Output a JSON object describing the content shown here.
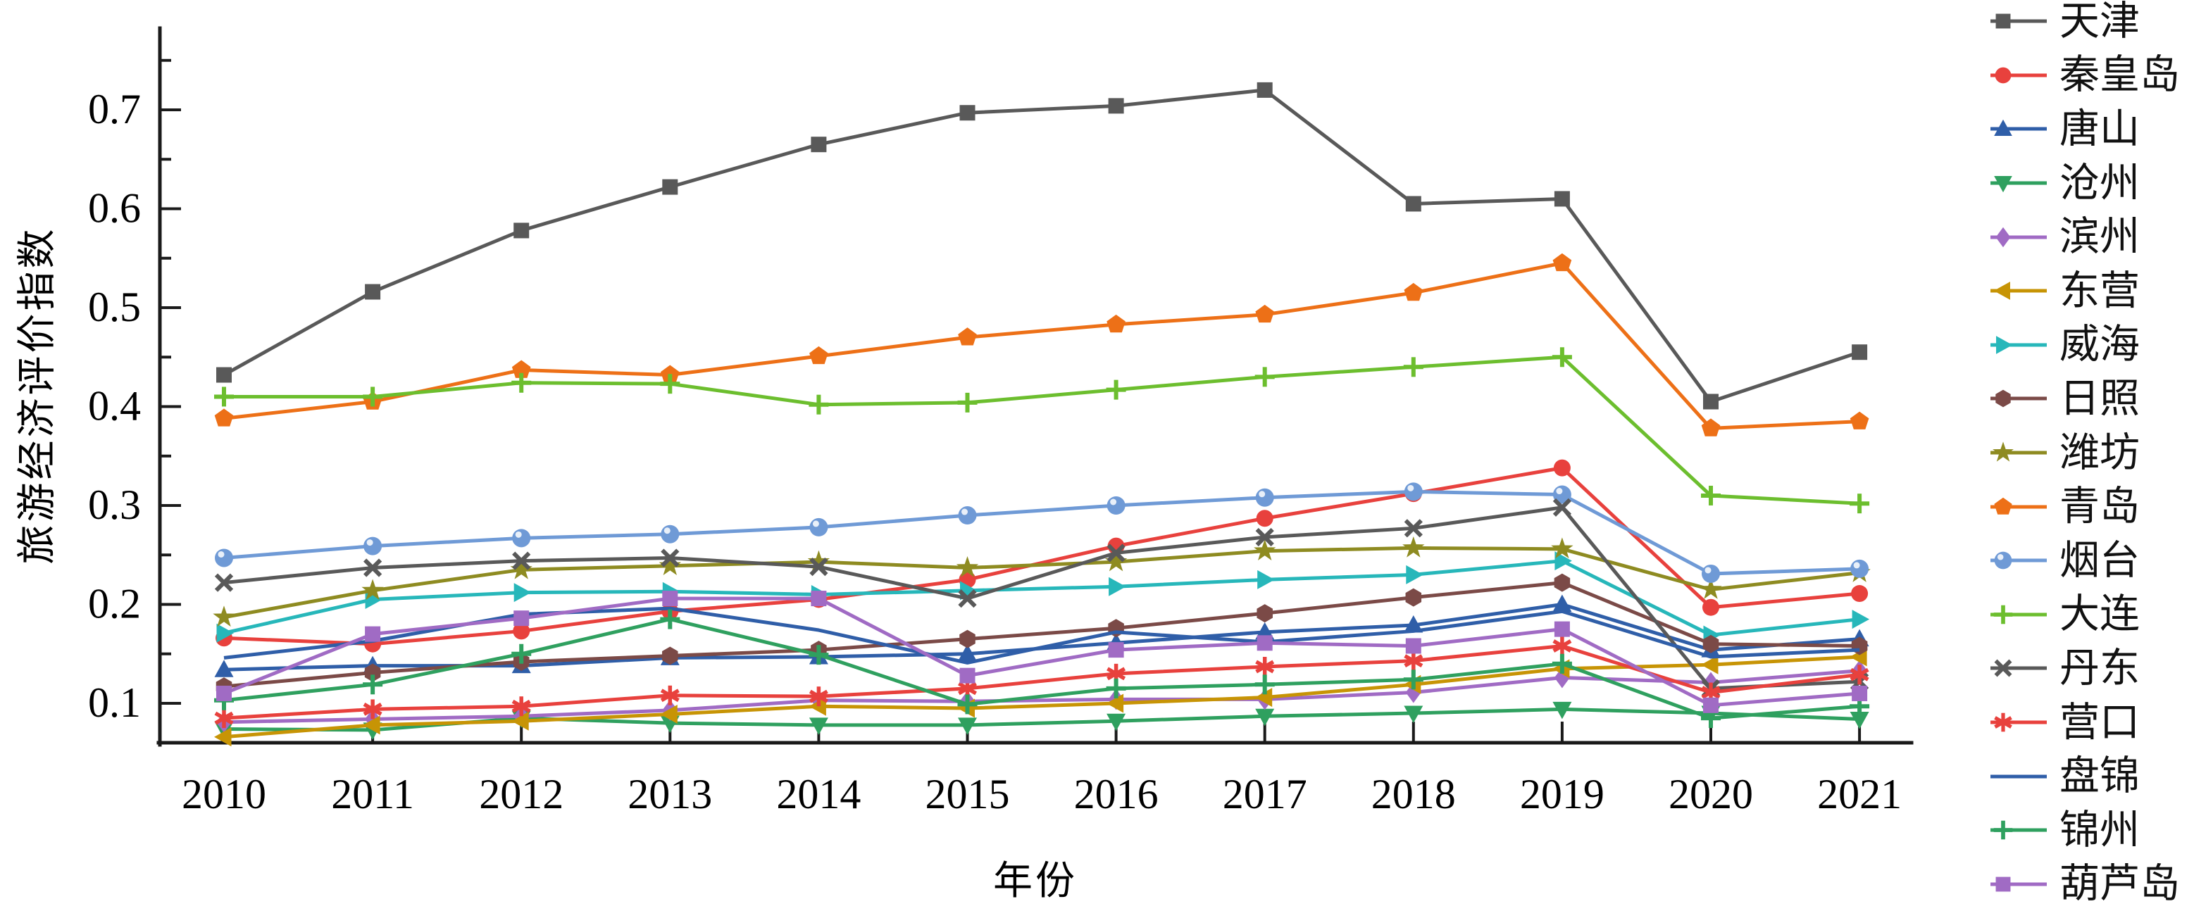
{
  "chart_data": {
    "type": "line",
    "title": "",
    "xlabel": "年份",
    "ylabel": "旅游经济评价指数",
    "x": [
      2010,
      2011,
      2012,
      2013,
      2014,
      2015,
      2016,
      2017,
      2018,
      2019,
      2020,
      2021
    ],
    "x_tick_labels": [
      "2010",
      "2011",
      "2012",
      "2013",
      "2014",
      "2015",
      "2016",
      "2017",
      "2018",
      "2019",
      "2020",
      "2021"
    ],
    "ylim": [
      0.05,
      0.782
    ],
    "yticks": [
      0.1,
      0.2,
      0.3,
      0.4,
      0.5,
      0.6,
      0.7
    ],
    "ytick_labels": [
      "0.1",
      "0.2",
      "0.3",
      "0.4",
      "0.5",
      "0.6",
      "0.7"
    ],
    "minor_yticks": [
      0.15,
      0.25,
      0.35,
      0.45,
      0.55,
      0.65,
      0.75
    ],
    "grid": false,
    "legend_position": "right-outside",
    "axis_color": "#1a1a1a",
    "series": [
      {
        "name": "天津",
        "color": "#595959",
        "marker": "square",
        "values": [
          0.432,
          0.516,
          0.578,
          0.622,
          0.665,
          0.697,
          0.704,
          0.72,
          0.605,
          0.61,
          0.405,
          0.455
        ]
      },
      {
        "name": "秦皇岛",
        "color": "#E8413D",
        "marker": "circle",
        "values": [
          0.166,
          0.16,
          0.173,
          0.193,
          0.205,
          0.225,
          0.259,
          0.287,
          0.312,
          0.338,
          0.197,
          0.211
        ]
      },
      {
        "name": "唐山",
        "color": "#2F5EA8",
        "marker": "triangle-up",
        "values": [
          0.134,
          0.138,
          0.138,
          0.146,
          0.147,
          0.15,
          0.161,
          0.172,
          0.179,
          0.2,
          0.154,
          0.165
        ]
      },
      {
        "name": "沧州",
        "color": "#2FA05F",
        "marker": "triangle-down",
        "values": [
          0.074,
          0.073,
          0.085,
          0.08,
          0.078,
          0.078,
          0.082,
          0.087,
          0.09,
          0.094,
          0.09,
          0.084
        ]
      },
      {
        "name": "滨州",
        "color": "#A06BC4",
        "marker": "diamond",
        "values": [
          0.081,
          0.084,
          0.087,
          0.093,
          0.103,
          0.102,
          0.104,
          0.104,
          0.111,
          0.126,
          0.121,
          0.133
        ]
      },
      {
        "name": "东营",
        "color": "#C79405",
        "marker": "triangle-left",
        "values": [
          0.066,
          0.078,
          0.082,
          0.089,
          0.097,
          0.095,
          0.1,
          0.106,
          0.119,
          0.135,
          0.139,
          0.147
        ]
      },
      {
        "name": "威海",
        "color": "#27B7BA",
        "marker": "triangle-right",
        "values": [
          0.171,
          0.205,
          0.212,
          0.213,
          0.21,
          0.214,
          0.218,
          0.225,
          0.23,
          0.244,
          0.169,
          0.185
        ]
      },
      {
        "name": "日照",
        "color": "#7B4A47",
        "marker": "hexagon",
        "values": [
          0.117,
          0.131,
          0.142,
          0.148,
          0.154,
          0.165,
          0.176,
          0.191,
          0.207,
          0.222,
          0.16,
          0.158
        ]
      },
      {
        "name": "潍坊",
        "color": "#8E8B21",
        "marker": "star",
        "values": [
          0.187,
          0.214,
          0.235,
          0.239,
          0.243,
          0.237,
          0.243,
          0.254,
          0.257,
          0.256,
          0.215,
          0.232
        ]
      },
      {
        "name": "青岛",
        "color": "#ED7017",
        "marker": "pentagon",
        "values": [
          0.388,
          0.405,
          0.437,
          0.432,
          0.451,
          0.47,
          0.483,
          0.493,
          0.515,
          0.545,
          0.378,
          0.385
        ]
      },
      {
        "name": "烟台",
        "color": "#6F9AD6",
        "marker": "sphere",
        "values": [
          0.247,
          0.259,
          0.267,
          0.271,
          0.278,
          0.29,
          0.3,
          0.308,
          0.314,
          0.311,
          0.231,
          0.236
        ]
      },
      {
        "name": "大连",
        "color": "#6CBE2E",
        "marker": "plus",
        "values": [
          0.41,
          0.41,
          0.424,
          0.423,
          0.402,
          0.404,
          0.417,
          0.43,
          0.44,
          0.45,
          0.31,
          0.302
        ]
      },
      {
        "name": "丹东",
        "color": "#595959",
        "marker": "x",
        "values": [
          0.222,
          0.237,
          0.244,
          0.247,
          0.238,
          0.206,
          0.252,
          0.268,
          0.277,
          0.298,
          0.115,
          0.122
        ]
      },
      {
        "name": "营口",
        "color": "#E8413D",
        "marker": "asterisk",
        "values": [
          0.085,
          0.094,
          0.097,
          0.108,
          0.107,
          0.115,
          0.13,
          0.137,
          0.143,
          0.158,
          0.111,
          0.129
        ]
      },
      {
        "name": "盘锦",
        "color": "#2F5EA8",
        "marker": "none",
        "values": [
          0.146,
          0.163,
          0.19,
          0.196,
          0.174,
          0.141,
          0.172,
          0.162,
          0.173,
          0.193,
          0.147,
          0.154
        ]
      },
      {
        "name": "锦州",
        "color": "#2FA05F",
        "marker": "plus",
        "values": [
          0.103,
          0.119,
          0.15,
          0.185,
          0.149,
          0.099,
          0.115,
          0.119,
          0.124,
          0.14,
          0.085,
          0.097
        ]
      },
      {
        "name": "葫芦岛",
        "color": "#A06BC4",
        "marker": "square",
        "values": [
          0.11,
          0.17,
          0.186,
          0.206,
          0.206,
          0.128,
          0.154,
          0.161,
          0.158,
          0.175,
          0.098,
          0.11
        ]
      }
    ]
  }
}
